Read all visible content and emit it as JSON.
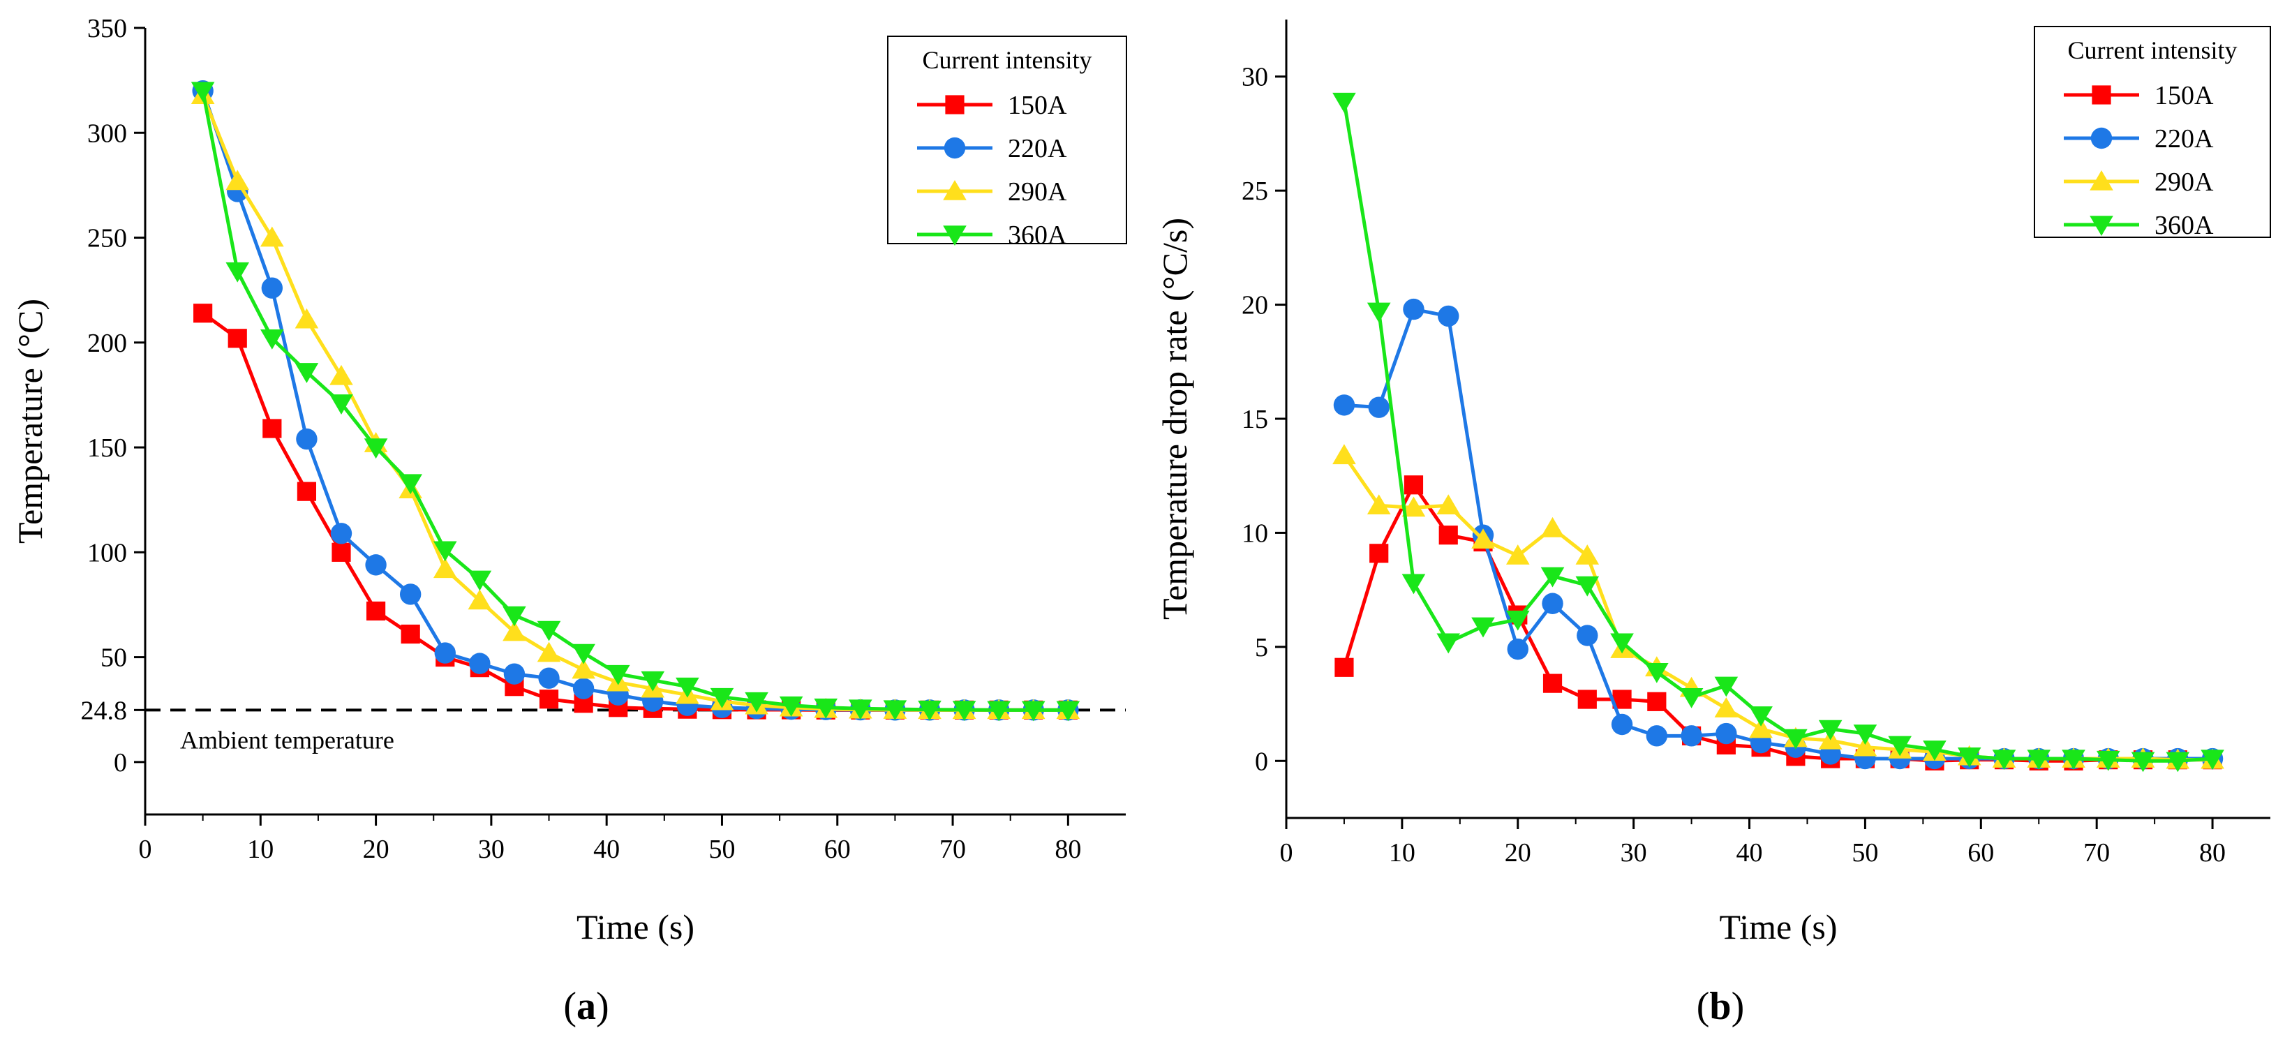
{
  "colors": {
    "150A": "#ff0000",
    "220A": "#1e78e6",
    "290A": "#ffdf1c",
    "360A": "#19e619",
    "ambient": "#000000"
  },
  "chart_data": [
    {
      "panel": "a",
      "panel_label": "(a)",
      "type": "line",
      "title": "",
      "xlabel": "Time (s)",
      "ylabel": "Temperature (°C)",
      "xlim": [
        0,
        85
      ],
      "ylim": [
        -25,
        350
      ],
      "xticks": [
        0,
        10,
        20,
        30,
        40,
        50,
        60,
        70,
        80
      ],
      "yticks": [
        0,
        24.8,
        50,
        100,
        150,
        200,
        250,
        300,
        350
      ],
      "ytick_labels": [
        "0",
        "24.8",
        "50",
        "100",
        "150",
        "200",
        "250",
        "300",
        "350"
      ],
      "grid": false,
      "legend_title": "Current intensity",
      "legend_position": "top-right",
      "x": [
        5,
        8,
        11,
        14,
        17,
        20,
        23,
        26,
        29,
        32,
        35,
        38,
        41,
        44,
        47,
        50,
        53,
        56,
        59,
        62,
        65,
        68,
        71,
        74,
        77,
        80
      ],
      "series": [
        {
          "name": "150A",
          "marker": "square",
          "values": [
            214,
            202,
            159,
            129,
            100,
            72,
            61,
            50,
            45,
            36,
            30,
            28,
            26,
            25.5,
            25.2,
            25,
            24.9,
            24.9,
            24.8,
            24.8,
            24.8,
            24.8,
            24.8,
            24.8,
            24.8,
            24.8
          ]
        },
        {
          "name": "220A",
          "marker": "circle",
          "values": [
            320,
            272,
            226,
            154,
            109,
            94,
            80,
            52,
            47,
            42,
            40,
            35,
            32,
            29,
            27,
            26,
            25.5,
            25.2,
            25,
            24.9,
            24.8,
            24.8,
            24.8,
            24.8,
            24.8,
            24.8
          ]
        },
        {
          "name": "290A",
          "marker": "triangle-up",
          "values": [
            318,
            277,
            250,
            211,
            184,
            152,
            130,
            92,
            77,
            62,
            52,
            44,
            38,
            35,
            32,
            29,
            27,
            26,
            25.3,
            25,
            24.9,
            24.8,
            24.8,
            24.8,
            24.8,
            24.8
          ]
        },
        {
          "name": "360A",
          "marker": "triangle-down",
          "values": [
            320,
            234,
            202,
            186,
            171,
            150,
            133,
            101,
            87,
            70,
            63,
            52,
            42,
            39,
            36,
            31,
            29,
            27,
            26,
            25.5,
            25.2,
            25,
            24.9,
            24.8,
            24.8,
            24.8
          ]
        }
      ],
      "reference_line": {
        "y": 24.8,
        "label": "Ambient temperature",
        "style": "dashed"
      }
    },
    {
      "panel": "b",
      "panel_label": "(b)",
      "type": "line",
      "title": "",
      "xlabel": "Time (s)",
      "ylabel": "Temperature drop rate (°C/s)",
      "xlim": [
        0,
        85
      ],
      "ylim": [
        -2.5,
        32.5
      ],
      "xticks": [
        0,
        10,
        20,
        30,
        40,
        50,
        60,
        70,
        80
      ],
      "yticks": [
        0,
        5,
        10,
        15,
        20,
        25,
        30
      ],
      "ytick_labels": [
        "0",
        "5",
        "10",
        "15",
        "20",
        "25",
        "30"
      ],
      "grid": false,
      "legend_title": "Current intensity",
      "legend_position": "top-right",
      "x": [
        5,
        8,
        11,
        14,
        17,
        20,
        23,
        26,
        29,
        32,
        35,
        38,
        41,
        44,
        47,
        50,
        53,
        56,
        59,
        62,
        65,
        68,
        71,
        74,
        77,
        80
      ],
      "series": [
        {
          "name": "150A",
          "marker": "square",
          "values": [
            4.1,
            9.1,
            12.1,
            9.9,
            9.6,
            6.4,
            3.4,
            2.7,
            2.7,
            2.6,
            1.1,
            0.7,
            0.6,
            0.2,
            0.1,
            0.1,
            0.1,
            0.0,
            0.05,
            0.05,
            0.0,
            0.0,
            0.05,
            0.05,
            0.05,
            0.05
          ]
        },
        {
          "name": "220A",
          "marker": "circle",
          "values": [
            15.6,
            15.5,
            19.8,
            19.5,
            9.9,
            4.9,
            6.9,
            5.5,
            1.6,
            1.1,
            1.1,
            1.2,
            0.8,
            0.6,
            0.3,
            0.1,
            0.1,
            0.1,
            0.1,
            0.1,
            0.1,
            0.1,
            0.1,
            0.1,
            0.1,
            0.1
          ]
        },
        {
          "name": "290A",
          "marker": "triangle-up",
          "values": [
            13.4,
            11.2,
            11.1,
            11.2,
            9.7,
            9.0,
            10.2,
            9.0,
            4.9,
            4.1,
            3.2,
            2.3,
            1.4,
            1.0,
            0.9,
            0.6,
            0.5,
            0.4,
            0.2,
            0.1,
            0.1,
            0.1,
            0.1,
            0.1,
            0.05,
            0.05
          ]
        },
        {
          "name": "360A",
          "marker": "triangle-down",
          "values": [
            28.9,
            19.7,
            7.8,
            5.2,
            5.9,
            6.2,
            8.1,
            7.7,
            5.2,
            3.9,
            2.8,
            3.3,
            2.0,
            1.0,
            1.4,
            1.2,
            0.7,
            0.5,
            0.2,
            0.1,
            0.1,
            0.1,
            0.05,
            0.0,
            0.0,
            0.1
          ]
        }
      ]
    }
  ]
}
